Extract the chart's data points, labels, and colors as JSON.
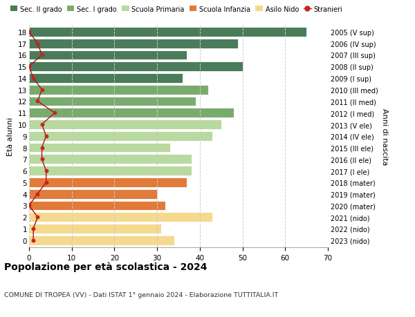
{
  "ages": [
    18,
    17,
    16,
    15,
    14,
    13,
    12,
    11,
    10,
    9,
    8,
    7,
    6,
    5,
    4,
    3,
    2,
    1,
    0
  ],
  "bar_values": [
    65,
    49,
    37,
    50,
    36,
    42,
    39,
    48,
    45,
    43,
    33,
    38,
    38,
    37,
    30,
    32,
    43,
    31,
    34
  ],
  "bar_colors": [
    "#4a7c59",
    "#4a7c59",
    "#4a7c59",
    "#4a7c59",
    "#4a7c59",
    "#7aab6e",
    "#7aab6e",
    "#7aab6e",
    "#b8d9a0",
    "#b8d9a0",
    "#b8d9a0",
    "#b8d9a0",
    "#b8d9a0",
    "#e07b39",
    "#e07b39",
    "#e07b39",
    "#f5d98e",
    "#f5d98e",
    "#f5d98e"
  ],
  "stranieri_values": [
    0,
    2,
    3,
    0,
    1,
    3,
    2,
    6,
    3,
    4,
    3,
    3,
    4,
    4,
    2,
    0,
    2,
    1,
    1
  ],
  "right_labels": [
    "2005 (V sup)",
    "2006 (IV sup)",
    "2007 (III sup)",
    "2008 (II sup)",
    "2009 (I sup)",
    "2010 (III med)",
    "2011 (II med)",
    "2012 (I med)",
    "2013 (V ele)",
    "2014 (IV ele)",
    "2015 (III ele)",
    "2016 (II ele)",
    "2017 (I ele)",
    "2018 (mater)",
    "2019 (mater)",
    "2020 (mater)",
    "2021 (nido)",
    "2022 (nido)",
    "2023 (nido)"
  ],
  "xlim": [
    0,
    70
  ],
  "xticks": [
    0,
    10,
    20,
    30,
    40,
    50,
    60,
    70
  ],
  "ylabel_left": "Età alunni",
  "ylabel_right": "Anni di nascita",
  "title": "Popolazione per età scolastica - 2024",
  "subtitle": "COMUNE DI TROPEA (VV) - Dati ISTAT 1° gennaio 2024 - Elaborazione TUTTITALIA.IT",
  "legend_items": [
    {
      "label": "Sec. II grado",
      "color": "#4a7c59",
      "type": "patch"
    },
    {
      "label": "Sec. I grado",
      "color": "#7aab6e",
      "type": "patch"
    },
    {
      "label": "Scuola Primaria",
      "color": "#b8d9a0",
      "type": "patch"
    },
    {
      "label": "Scuola Infanzia",
      "color": "#e07b39",
      "type": "patch"
    },
    {
      "label": "Asilo Nido",
      "color": "#f5d98e",
      "type": "patch"
    },
    {
      "label": "Stranieri",
      "color": "#cc2222",
      "type": "line"
    }
  ],
  "bar_height": 0.82,
  "background_color": "#ffffff",
  "grid_color": "#cccccc",
  "stranieri_line_color": "#aa1111",
  "stranieri_dot_color": "#cc2222"
}
